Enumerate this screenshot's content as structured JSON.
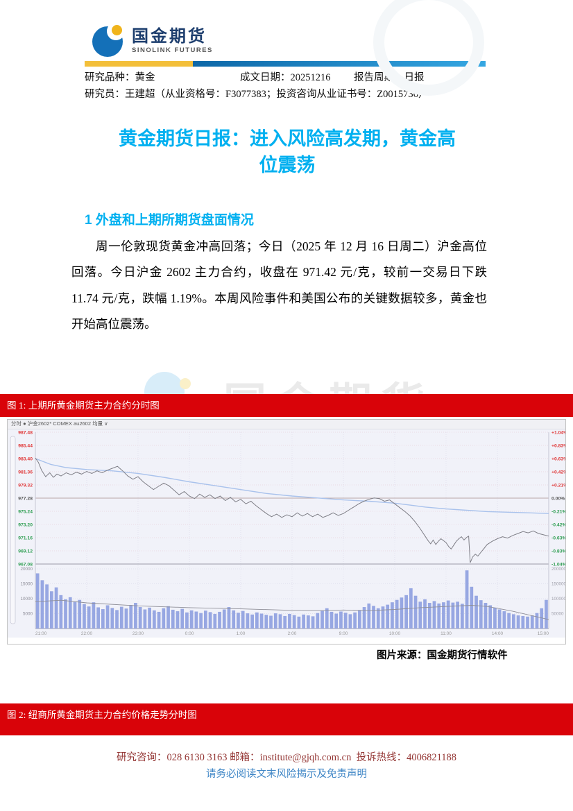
{
  "header": {
    "logo": {
      "name_cn": "国金期货",
      "name_en": "SINOLINK FUTURES"
    },
    "meta": {
      "research_type_label": "研究品种：",
      "research_type": "黄金",
      "date_label": "成文日期：",
      "date": "20251216",
      "period_label": "报告周期：",
      "period": "日报",
      "researcher_label": "研究员：",
      "researcher": "王建超（从业资格号：F3077383；投资咨询从业证书号：Z0015736）"
    }
  },
  "report": {
    "title": "黄金期货日报：进入风险高发期，黄金高位震荡",
    "section1_heading": "1 外盘和上期所期货盘面情况",
    "paragraph": "周一伦敦现货黄金冲高回落；今日（2025 年 12 月 16 日周二）沪金高位回落。今日沪金 2602 主力合约，收盘在 971.42 元/克，较前一交易日下跌 11.74 元/克，跌幅 1.19%。本周风险事件和美国公布的关键数据较多，黄金也开始高位震荡。"
  },
  "figure1": {
    "banner": "图 1: 上期所黄金期货主力合约分时图",
    "toolbar": "分时 ● 沪金2602* COMEX au2602    均量 ∨",
    "source": "图片来源：国金期货行情软件"
  },
  "figure2": {
    "banner": "图 2: 纽商所黄金期货主力合约价格走势分时图"
  },
  "footer": {
    "consult_label": "研究咨询：",
    "consult_phone": "028 6130 3163",
    "email_label": "邮箱：",
    "email": "institute@gjqh.com.cn",
    "hotline_label": "投诉热线：",
    "hotline": "4006821188",
    "disclaimer": "请务必阅读文末风险揭示及免责声明"
  },
  "watermark_text": "国金期货",
  "colors": {
    "banner_red": "#d90309",
    "title_blue": "#00b0f0",
    "footer_maroon": "#943634",
    "footer_blue": "#3f86c6",
    "bar_gold": "#f3bf3a",
    "bar_blue": "#1273b5",
    "up_red": "#e03636",
    "down_green": "#2f9e52",
    "volume_bar": "#97a7e2",
    "avg_line": "#a9c2ec",
    "price_line": "#7e7e86"
  },
  "chart_data": {
    "type": "line",
    "title": "上期所黄金期货主力合约分时图",
    "ylim": [
      967.08,
      987.48
    ],
    "reference_price": 977.28,
    "close": 971.42,
    "price_axis_labels": [
      "987.48",
      "985.44",
      "983.40",
      "981.36",
      "979.32",
      "977.28",
      "975.24",
      "973.20",
      "971.16",
      "969.12",
      "967.08"
    ],
    "pct_axis_labels": [
      "+1.04%",
      "+0.83%",
      "+0.63%",
      "+0.42%",
      "+0.21%",
      "0.00%",
      "-0.21%",
      "-0.42%",
      "-0.63%",
      "-0.83%",
      "-1.04%"
    ],
    "volume_axis_labels": [
      "20000",
      "15000",
      "10000",
      "5000"
    ],
    "volume_axis_labels_right": [
      "200000",
      "150000",
      "100000",
      "50000"
    ],
    "time_labels": [
      "21:00",
      "22:00",
      "23:00",
      "0:00",
      "1:00",
      "2:00",
      "9:00",
      "10:00",
      "11:00",
      "14:00",
      "15:00"
    ],
    "series": [
      {
        "name": "价格",
        "points": [
          [
            0.0,
            983.5
          ],
          [
            0.006,
            982.8
          ],
          [
            0.012,
            981.6
          ],
          [
            0.02,
            980.6
          ],
          [
            0.028,
            981.2
          ],
          [
            0.035,
            980.5
          ],
          [
            0.042,
            981.0
          ],
          [
            0.05,
            980.7
          ],
          [
            0.06,
            981.2
          ],
          [
            0.07,
            980.9
          ],
          [
            0.08,
            981.3
          ],
          [
            0.09,
            981.0
          ],
          [
            0.1,
            981.4
          ],
          [
            0.11,
            981.1
          ],
          [
            0.12,
            981.5
          ],
          [
            0.13,
            981.2
          ],
          [
            0.14,
            981.6
          ],
          [
            0.15,
            981.9
          ],
          [
            0.16,
            982.2
          ],
          [
            0.17,
            981.5
          ],
          [
            0.18,
            980.7
          ],
          [
            0.19,
            980.2
          ],
          [
            0.2,
            980.6
          ],
          [
            0.21,
            979.8
          ],
          [
            0.22,
            979.2
          ],
          [
            0.23,
            978.6
          ],
          [
            0.24,
            979.1
          ],
          [
            0.25,
            979.6
          ],
          [
            0.26,
            979.2
          ],
          [
            0.27,
            978.5
          ],
          [
            0.28,
            977.8
          ],
          [
            0.29,
            978.3
          ],
          [
            0.3,
            977.6
          ],
          [
            0.31,
            977.2
          ],
          [
            0.32,
            977.9
          ],
          [
            0.33,
            977.4
          ],
          [
            0.34,
            977.8
          ],
          [
            0.35,
            977.2
          ],
          [
            0.36,
            977.6
          ],
          [
            0.37,
            976.9
          ],
          [
            0.38,
            977.4
          ],
          [
            0.39,
            976.7
          ],
          [
            0.4,
            977.1
          ],
          [
            0.41,
            976.4
          ],
          [
            0.42,
            976.8
          ],
          [
            0.43,
            976.1
          ],
          [
            0.44,
            975.5
          ],
          [
            0.45,
            974.9
          ],
          [
            0.46,
            974.4
          ],
          [
            0.47,
            974.8
          ],
          [
            0.48,
            974.3
          ],
          [
            0.49,
            974.7
          ],
          [
            0.5,
            974.4
          ],
          [
            0.51,
            975.0
          ],
          [
            0.52,
            974.5
          ],
          [
            0.53,
            974.9
          ],
          [
            0.54,
            974.4
          ],
          [
            0.55,
            974.8
          ],
          [
            0.56,
            974.3
          ],
          [
            0.57,
            974.6
          ],
          [
            0.58,
            975.0
          ],
          [
            0.59,
            974.6
          ],
          [
            0.6,
            974.9
          ],
          [
            0.61,
            975.4
          ],
          [
            0.62,
            975.9
          ],
          [
            0.63,
            976.4
          ],
          [
            0.64,
            976.8
          ],
          [
            0.65,
            977.1
          ],
          [
            0.66,
            977.3
          ],
          [
            0.67,
            977.2
          ],
          [
            0.68,
            976.8
          ],
          [
            0.69,
            977.0
          ],
          [
            0.7,
            976.4
          ],
          [
            0.71,
            975.8
          ],
          [
            0.72,
            975.2
          ],
          [
            0.73,
            974.5
          ],
          [
            0.74,
            973.6
          ],
          [
            0.75,
            972.5
          ],
          [
            0.76,
            971.3
          ],
          [
            0.765,
            970.7
          ],
          [
            0.77,
            970.2
          ],
          [
            0.775,
            970.8
          ],
          [
            0.78,
            970.1
          ],
          [
            0.785,
            970.6
          ],
          [
            0.79,
            971.0
          ],
          [
            0.8,
            970.4
          ],
          [
            0.805,
            969.8
          ],
          [
            0.81,
            969.4
          ],
          [
            0.815,
            970.0
          ],
          [
            0.82,
            970.6
          ],
          [
            0.825,
            971.0
          ],
          [
            0.83,
            971.3
          ],
          [
            0.835,
            970.8
          ],
          [
            0.84,
            971.2
          ],
          [
            0.844,
            971.4
          ],
          [
            0.847,
            967.3
          ],
          [
            0.852,
            968.2
          ],
          [
            0.857,
            968.6
          ],
          [
            0.862,
            968.3
          ],
          [
            0.868,
            968.9
          ],
          [
            0.874,
            969.5
          ],
          [
            0.88,
            970.1
          ],
          [
            0.89,
            970.6
          ],
          [
            0.9,
            971.0
          ],
          [
            0.91,
            971.3
          ],
          [
            0.92,
            971.1
          ],
          [
            0.93,
            971.5
          ],
          [
            0.94,
            971.8
          ],
          [
            0.95,
            972.1
          ],
          [
            0.96,
            971.9
          ],
          [
            0.97,
            972.2
          ],
          [
            0.98,
            971.8
          ],
          [
            0.99,
            971.6
          ],
          [
            1.0,
            971.4
          ]
        ]
      },
      {
        "name": "均价",
        "points": [
          [
            0.0,
            983.4
          ],
          [
            0.03,
            982.5
          ],
          [
            0.06,
            982.0
          ],
          [
            0.1,
            981.7
          ],
          [
            0.15,
            981.5
          ],
          [
            0.2,
            981.1
          ],
          [
            0.25,
            980.5
          ],
          [
            0.3,
            979.8
          ],
          [
            0.35,
            979.2
          ],
          [
            0.4,
            978.6
          ],
          [
            0.45,
            978.0
          ],
          [
            0.5,
            977.6
          ],
          [
            0.55,
            977.3
          ],
          [
            0.6,
            977.0
          ],
          [
            0.65,
            976.8
          ],
          [
            0.7,
            976.5
          ],
          [
            0.73,
            976.2
          ],
          [
            0.76,
            975.9
          ],
          [
            0.8,
            975.6
          ],
          [
            0.84,
            975.4
          ],
          [
            0.88,
            975.2
          ],
          [
            0.92,
            975.1
          ],
          [
            0.96,
            975.0
          ],
          [
            1.0,
            974.9
          ]
        ]
      }
    ],
    "volume": {
      "max": 20000,
      "values": [
        18500,
        16200,
        14800,
        12500,
        13800,
        11200,
        9800,
        10500,
        8900,
        9600,
        8200,
        7400,
        8800,
        7100,
        6500,
        7800,
        6900,
        6200,
        7300,
        6700,
        7900,
        8600,
        7200,
        6400,
        7000,
        6100,
        5600,
        6800,
        7500,
        6300,
        5800,
        6600,
        5400,
        6100,
        5700,
        5200,
        6000,
        5500,
        4900,
        5600,
        6400,
        7200,
        6100,
        5300,
        5900,
        5100,
        4700,
        5400,
        5000,
        4600,
        4300,
        5100,
        4800,
        4200,
        4900,
        4500,
        4000,
        4700,
        4400,
        4100,
        5200,
        6000,
        6800,
        5600,
        5000,
        5700,
        5300,
        4800,
        5400,
        6200,
        7200,
        8400,
        7600,
        6800,
        7400,
        8000,
        8800,
        9600,
        10400,
        11200,
        13500,
        11000,
        9000,
        9800,
        8600,
        9200,
        8400,
        8800,
        9400,
        8700,
        9000,
        8300,
        19500,
        14000,
        11000,
        9500,
        8600,
        7800,
        7000,
        6400,
        5800,
        5200,
        4800,
        4400,
        4200,
        4000,
        4400,
        5200,
        6800,
        9600
      ]
    },
    "volume_ma": [
      [
        0.0,
        9000
      ],
      [
        0.05,
        9500
      ],
      [
        0.1,
        8600
      ],
      [
        0.2,
        7600
      ],
      [
        0.3,
        7000
      ],
      [
        0.4,
        6600
      ],
      [
        0.5,
        6100
      ],
      [
        0.56,
        6000
      ],
      [
        0.6,
        6200
      ],
      [
        0.65,
        6000
      ],
      [
        0.7,
        6400
      ],
      [
        0.75,
        7000
      ],
      [
        0.8,
        7400
      ],
      [
        0.85,
        7800
      ],
      [
        0.88,
        7400
      ],
      [
        0.9,
        6800
      ],
      [
        0.93,
        5800
      ],
      [
        0.96,
        4600
      ],
      [
        1.0,
        3000
      ]
    ]
  }
}
